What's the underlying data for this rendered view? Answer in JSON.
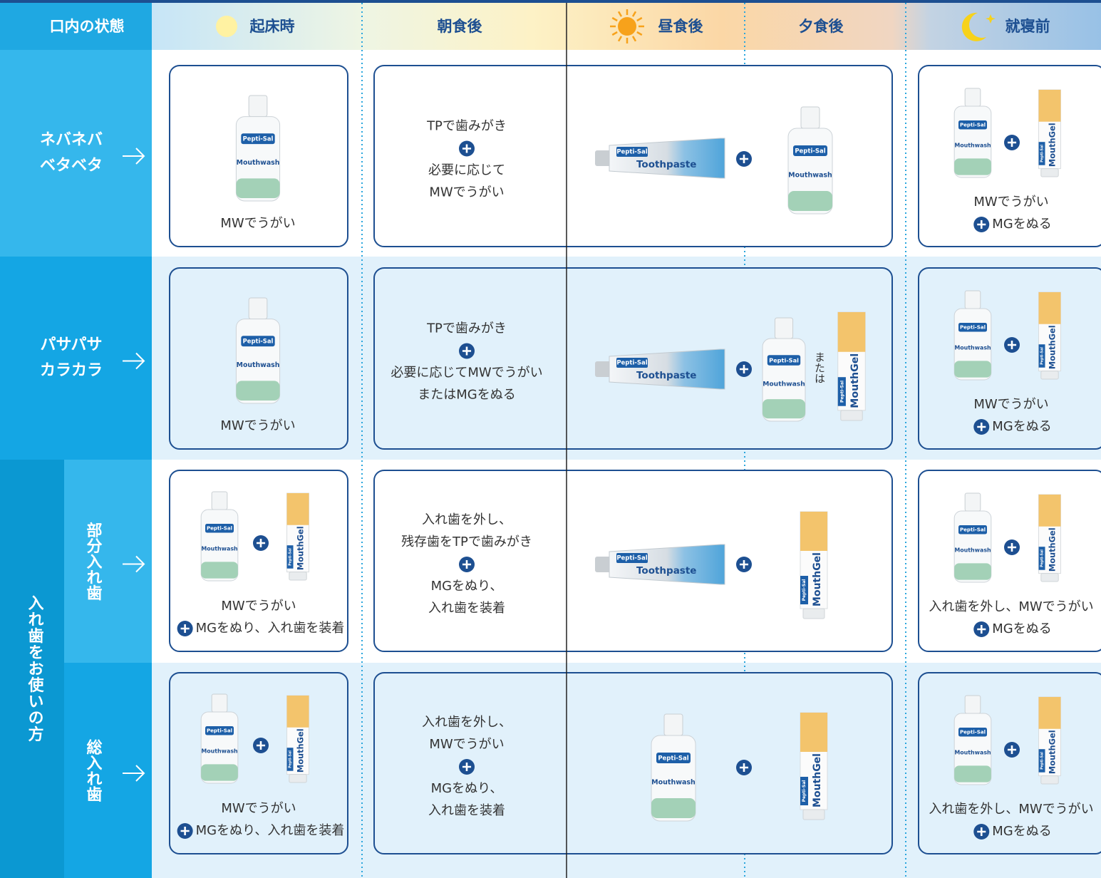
{
  "header": {
    "title": "口内の状態",
    "times": [
      "起床時",
      "朝食後",
      "昼食後",
      "夕食後",
      "就寝前"
    ]
  },
  "products": {
    "brand": "Pepti-Sal",
    "mouthwash": "Mouthwash",
    "toothpaste": "Toothpaste",
    "mouthgel": "MouthGel"
  },
  "denture_group": "入れ歯をお使いの方",
  "rows": [
    {
      "label": [
        "ネバネバ",
        "ベタベタ"
      ],
      "wake": {
        "caption": [
          "MWでうがい"
        ]
      },
      "day": {
        "steps": [
          [
            "TPで歯みがき"
          ],
          [
            "必要に応じて",
            "MWでうがい"
          ]
        ]
      },
      "bed": {
        "caption": [
          "MWでうがい"
        ],
        "plus_caption": "MGをぬる"
      }
    },
    {
      "label": [
        "パサパサ",
        "カラカラ"
      ],
      "wake": {
        "caption": [
          "MWでうがい"
        ]
      },
      "day": {
        "steps": [
          [
            "TPで歯みがき"
          ],
          [
            "必要に応じてMWでうがい",
            "またはMGをぬる"
          ]
        ],
        "or": "または"
      },
      "bed": {
        "caption": [
          "MWでうがい"
        ],
        "plus_caption": "MGをぬる"
      }
    },
    {
      "label": [
        "部分入れ歯"
      ],
      "wake": {
        "caption": [
          "MWでうがい"
        ],
        "plus_caption": "MGをぬり、入れ歯を装着"
      },
      "day": {
        "steps": [
          [
            "入れ歯を外し、",
            "残存歯をTPで歯みがき"
          ],
          [
            "MGをぬり、",
            "入れ歯を装着"
          ]
        ]
      },
      "bed": {
        "caption": [
          "入れ歯を外し、MWでうがい"
        ],
        "plus_caption": "MGをぬる"
      }
    },
    {
      "label": [
        "総入れ歯"
      ],
      "wake": {
        "caption": [
          "MWでうがい"
        ],
        "plus_caption": "MGをぬり、入れ歯を装着"
      },
      "day": {
        "steps": [
          [
            "入れ歯を外し、",
            "MWでうがい"
          ],
          [
            "MGをぬり、",
            "入れ歯を装着"
          ]
        ]
      },
      "bed": {
        "caption": [
          "入れ歯を外し、MWでうがい"
        ],
        "plus_caption": "MGをぬる"
      }
    }
  ]
}
